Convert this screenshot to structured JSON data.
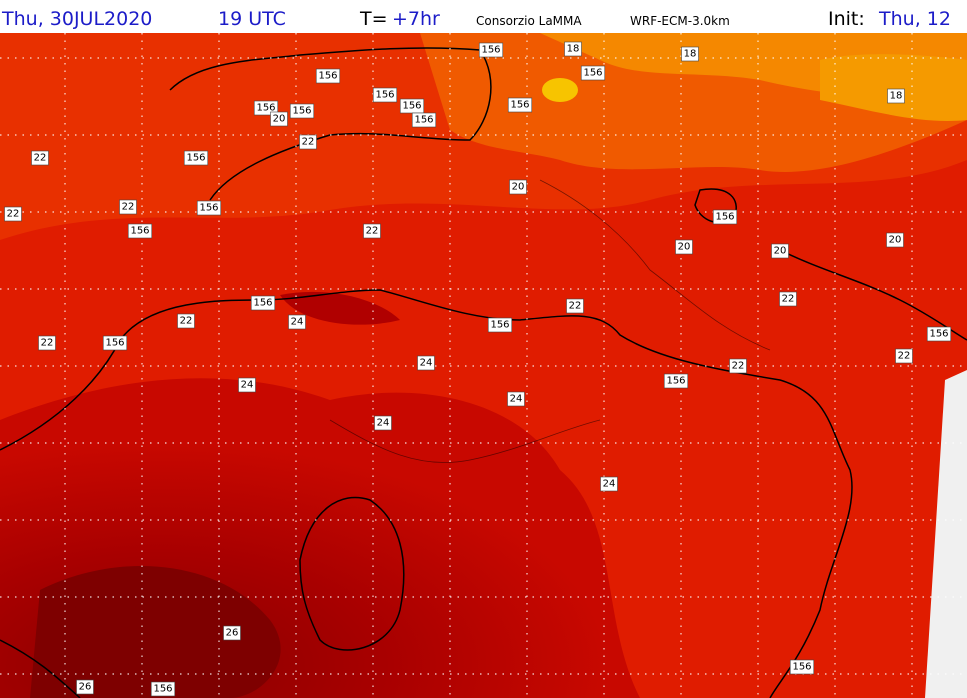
{
  "header": {
    "date": "Thu, 30JUL2020",
    "hour": "19 UTC",
    "lead_prefix": "T=",
    "lead": "+7hr",
    "institute": "Consorzio LaMMA",
    "model": "WRF-ECM-3.0km",
    "init_prefix": "Init:",
    "init": "Thu, 12"
  },
  "map": {
    "contour_labels": [
      "156",
      "18",
      "18",
      "156",
      "156",
      "18",
      "156",
      "156",
      "156",
      "156",
      "156",
      "20",
      "156",
      "22",
      "22",
      "156",
      "20",
      "22",
      "22",
      "156",
      "156",
      "156",
      "22",
      "20",
      "20",
      "20",
      "156",
      "22",
      "22",
      "24",
      "22",
      "156",
      "156",
      "22",
      "156",
      "22",
      "24",
      "22",
      "156",
      "24",
      "24",
      "24",
      "24",
      "26",
      "156",
      "26",
      "156"
    ]
  }
}
